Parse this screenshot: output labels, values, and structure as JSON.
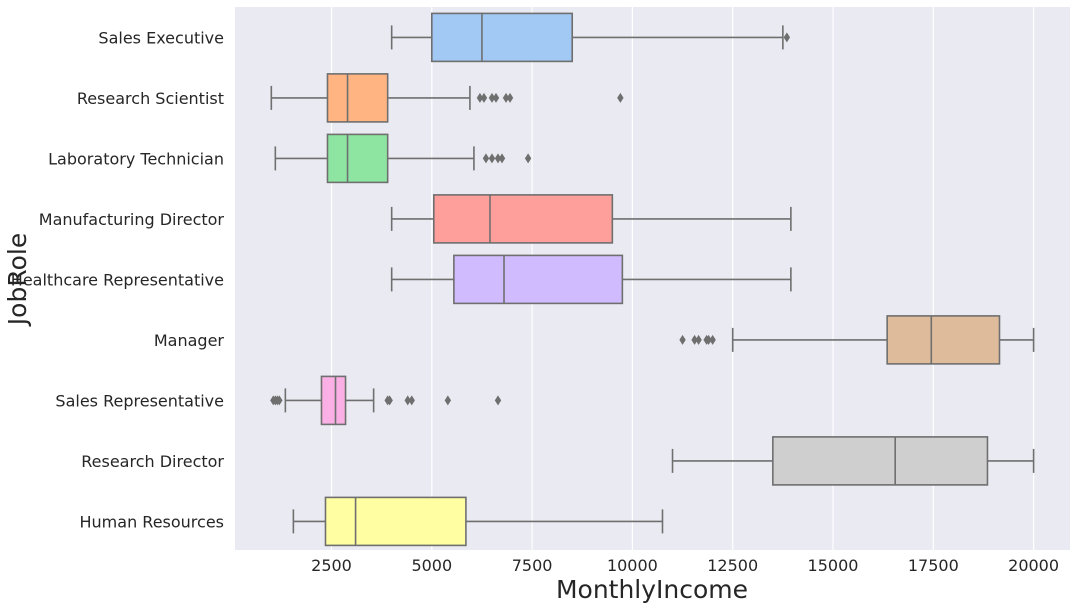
{
  "chart_data": {
    "type": "boxplot",
    "orientation": "horizontal",
    "xlabel": "MonthlyIncome",
    "ylabel": "JobRole",
    "xlim": [
      0,
      21000
    ],
    "xticks": [
      2500,
      5000,
      7500,
      10000,
      12500,
      15000,
      17500,
      20000
    ],
    "xtick_labels": [
      "2500",
      "5000",
      "7500",
      "10000",
      "12500",
      "15000",
      "17500",
      "20000"
    ],
    "grid": true,
    "categories": [
      "Sales Executive",
      "Research Scientist",
      "Laboratory Technician",
      "Manufacturing Director",
      "Healthcare Representative",
      "Manager",
      "Sales Representative",
      "Research Director",
      "Human Resources"
    ],
    "boxes": [
      {
        "whislo": 4000,
        "q1": 5000,
        "median": 6250,
        "q3": 8500,
        "whishi": 13750,
        "fliers": [
          13850
        ],
        "color": "#a1c9f4"
      },
      {
        "whislo": 1000,
        "q1": 2400,
        "median": 2900,
        "q3": 3900,
        "whishi": 5950,
        "fliers": [
          6200,
          6300,
          6500,
          6600,
          6850,
          6950,
          9700
        ],
        "color": "#ffb482"
      },
      {
        "whislo": 1100,
        "q1": 2400,
        "median": 2900,
        "q3": 3900,
        "whishi": 6050,
        "fliers": [
          6350,
          6500,
          6650,
          6750,
          7400
        ],
        "color": "#8de5a1"
      },
      {
        "whislo": 4000,
        "q1": 5050,
        "median": 6450,
        "q3": 9500,
        "whishi": 13950,
        "fliers": [],
        "color": "#ff9f9b"
      },
      {
        "whislo": 4000,
        "q1": 5550,
        "median": 6800,
        "q3": 9750,
        "whishi": 13950,
        "fliers": [],
        "color": "#d0bbff"
      },
      {
        "whislo": 12500,
        "q1": 16350,
        "median": 17450,
        "q3": 19150,
        "whishi": 20000,
        "fliers": [
          11250,
          11550,
          11650,
          11850,
          11900,
          12000
        ],
        "color": "#debb9b"
      },
      {
        "whislo": 1350,
        "q1": 2250,
        "median": 2600,
        "q3": 2850,
        "whishi": 3550,
        "fliers": [
          1050,
          1100,
          1150,
          1200,
          3900,
          3950,
          4400,
          4500,
          5400,
          6650
        ],
        "color": "#fab0e4"
      },
      {
        "whislo": 11000,
        "q1": 13500,
        "median": 16550,
        "q3": 18850,
        "whishi": 20000,
        "fliers": [],
        "color": "#cfcfcf"
      },
      {
        "whislo": 1550,
        "q1": 2350,
        "median": 3100,
        "q3": 5850,
        "whishi": 10750,
        "fliers": [],
        "color": "#fffea3"
      }
    ]
  }
}
